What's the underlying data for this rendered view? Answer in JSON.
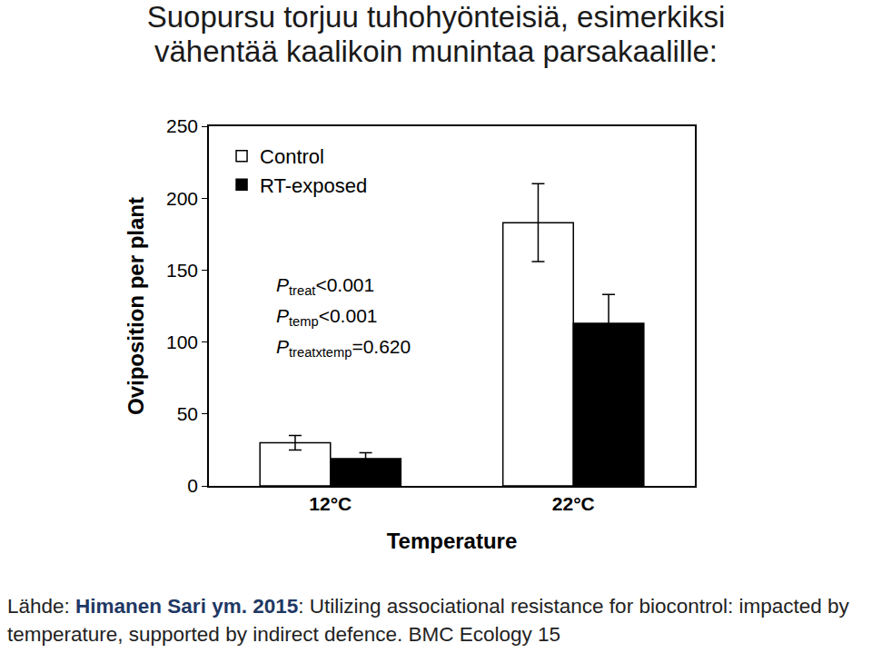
{
  "slide_title": [
    "Suopursu torjuu tuhohyönteisiä, esimerkiksi",
    "vähentää kaalikoin munintaa parsakaalille:"
  ],
  "source": {
    "prefix": "Lähde: ",
    "authors": "Himanen Sari ym. 2015",
    "text": ": Utilizing associational resistance for biocontrol: impacted by temperature, supported by indirect defence. BMC Ecology 15"
  },
  "chart_data": {
    "type": "bar",
    "x_label": "Temperature",
    "y_label": "Oviposition per plant",
    "categories": [
      "12°C",
      "22°C"
    ],
    "series": [
      {
        "name": "Control",
        "color": "#ffffff",
        "values": [
          30,
          183
        ],
        "error": [
          5,
          27
        ]
      },
      {
        "name": "RT-exposed",
        "color": "#000000",
        "values": [
          19,
          113
        ],
        "error": [
          4,
          20
        ]
      }
    ],
    "ylim": [
      0,
      250
    ],
    "yticks": [
      0,
      50,
      100,
      150,
      200,
      250
    ],
    "grid": false,
    "legend": "top-left",
    "annotations": [
      {
        "symbol": "P",
        "sub": "treat",
        "value": "<0.001"
      },
      {
        "symbol": "P",
        "sub": "temp",
        "value": "<0.001"
      },
      {
        "symbol": "P",
        "sub": "treatxtemp",
        "value": "=0.620"
      }
    ]
  }
}
